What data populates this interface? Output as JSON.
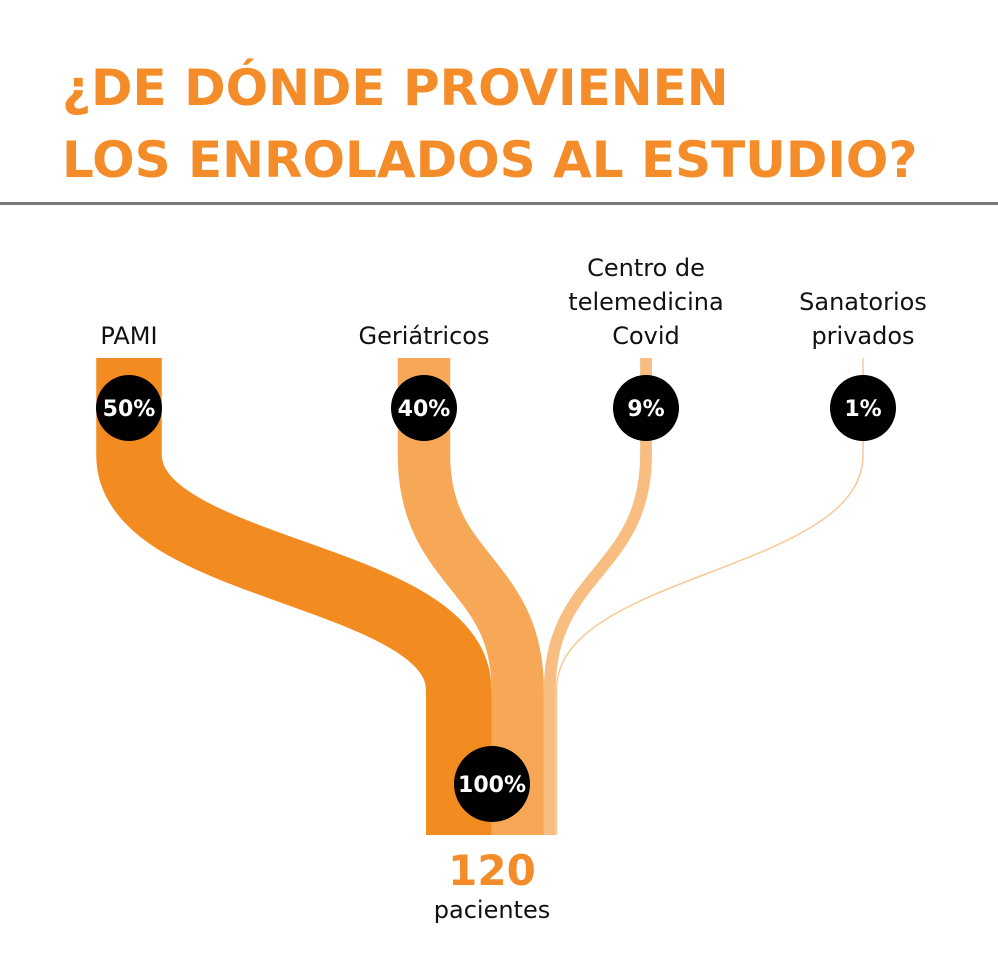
{
  "title_line1": "¿DE DÓNDE PROVIENEN",
  "title_line2": "LOS ENROLADOS AL ESTUDIO?",
  "colors": {
    "accent": "#F58C2A",
    "flows": [
      "#F28C20",
      "#F6A856",
      "#F8BD80",
      "#F8C994"
    ],
    "bubble": "#000000"
  },
  "chart_data": {
    "type": "sankey",
    "title": "¿DE DÓNDE PROVIENEN LOS ENROLADOS AL ESTUDIO?",
    "sources": [
      {
        "label_lines": [
          "PAMI"
        ],
        "value": 50,
        "value_label": "50%"
      },
      {
        "label_lines": [
          "Geriátricos"
        ],
        "value": 40,
        "value_label": "40%"
      },
      {
        "label_lines": [
          "Centro de",
          "telemedicina",
          "Covid"
        ],
        "value": 9,
        "value_label": "9%"
      },
      {
        "label_lines": [
          "Sanatorios",
          "privados"
        ],
        "value": 1,
        "value_label": "1%"
      }
    ],
    "total": {
      "value_label": "100%",
      "count": "120",
      "unit": "pacientes"
    }
  }
}
